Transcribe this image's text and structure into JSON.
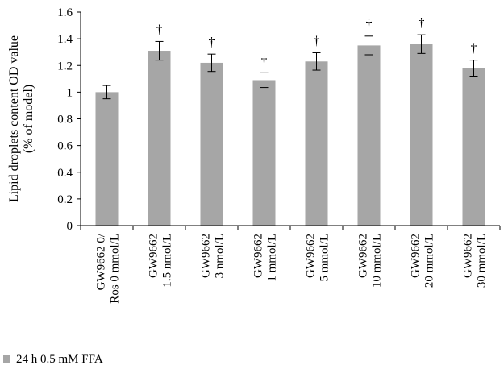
{
  "chart_data": {
    "type": "bar",
    "ylabel_lines": [
      "Lipid droplets content OD value",
      "(% of model)"
    ],
    "ylim": [
      0,
      1.6
    ],
    "yticks": [
      "0",
      "0.2",
      "0.4",
      "0.6",
      "0.8",
      "1",
      "1.2",
      "1.4",
      "1.6"
    ],
    "categories": [
      [
        "GW9662 0/",
        "Ros 0 mmol/L"
      ],
      [
        "GW9662",
        "1.5 nmol/L"
      ],
      [
        "GW9662",
        "3 nmol/L"
      ],
      [
        "GW9662",
        "1 mmol/L"
      ],
      [
        "GW9662",
        "5 mmol/L"
      ],
      [
        "GW9662",
        "10 mmol/L"
      ],
      [
        "GW9662",
        "20 mmol/L"
      ],
      [
        "GW9662",
        "30 mmol/L"
      ]
    ],
    "series": [
      {
        "name": "24 h 0.5 mM FFA",
        "values": [
          1.0,
          1.31,
          1.22,
          1.09,
          1.23,
          1.35,
          1.36,
          1.18
        ],
        "errors": [
          0.05,
          0.07,
          0.065,
          0.055,
          0.065,
          0.07,
          0.07,
          0.06
        ],
        "markers": [
          "",
          "†",
          "†",
          "†",
          "†",
          "†",
          "†",
          "†"
        ],
        "color": "#a6a6a6"
      }
    ],
    "grid": false,
    "legend_position": "bottom-left"
  }
}
